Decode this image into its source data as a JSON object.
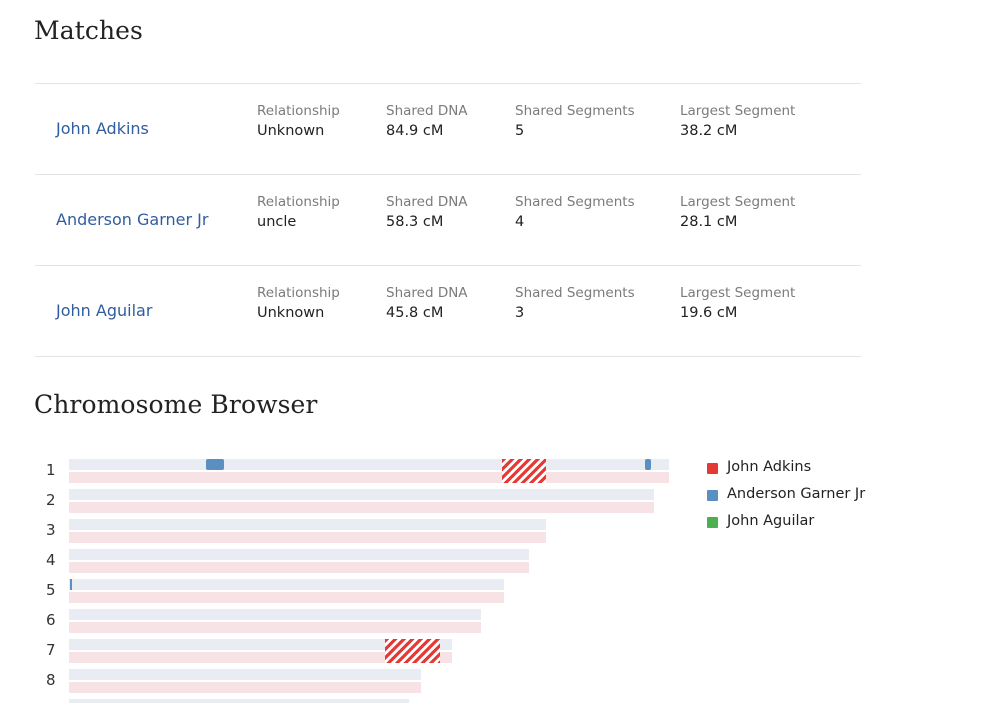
{
  "matches": {
    "title": "Matches",
    "rows": [
      {
        "name": "John Adkins",
        "relationship_label": "Relationship",
        "relationship": "Unknown",
        "shared_dna_label": "Shared DNA",
        "shared_dna": "84.9 cM",
        "shared_segments_label": "Shared Segments",
        "shared_segments": "5",
        "largest_segment_label": "Largest Segment",
        "largest_segment": "38.2 cM"
      },
      {
        "name": "Anderson Garner Jr",
        "relationship_label": "Relationship",
        "relationship": "uncle",
        "shared_dna_label": "Shared DNA",
        "shared_dna": "58.3 cM",
        "shared_segments_label": "Shared Segments",
        "shared_segments": "4",
        "largest_segment_label": "Largest Segment",
        "largest_segment": "28.1 cM"
      },
      {
        "name": "John Aguilar",
        "relationship_label": "Relationship",
        "relationship": "Unknown",
        "shared_dna_label": "Shared DNA",
        "shared_dna": "45.8 cM",
        "shared_segments_label": "Shared Segments",
        "shared_segments": "3",
        "largest_segment_label": "Largest Segment",
        "largest_segment": "19.6 cM"
      }
    ]
  },
  "chromosome_browser": {
    "title": "Chromosome Browser",
    "chromosomes": [
      "1",
      "2",
      "3",
      "4",
      "5",
      "6",
      "7",
      "8"
    ],
    "legend": [
      {
        "name": "John Adkins",
        "color": "#e53935"
      },
      {
        "name": "Anderson Garner Jr",
        "color": "#5b8fc1"
      },
      {
        "name": "John Aguilar",
        "color": "#4caf50"
      }
    ],
    "colors": {
      "paternal_track": "#e9ecf3",
      "maternal_track": "#f7e2e5",
      "hatch": "#e53935"
    }
  }
}
